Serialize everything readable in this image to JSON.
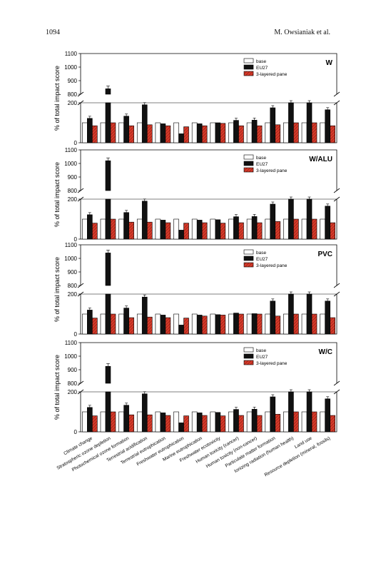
{
  "page": {
    "page_number": "1094",
    "authors": "M. Owsianiak et al."
  },
  "colors": {
    "base": "#ffffff",
    "eu27": "#111111",
    "pane": "#d63a2a",
    "pane_hatch": "#7a1a10"
  },
  "chart_data": {
    "type": "bar",
    "ylabel": "% of total impact score",
    "legend": [
      "base",
      "EU27",
      "3-layered pane"
    ],
    "legend_position": "top-right",
    "categories": [
      "Climate change",
      "Stratospheric ozone depletion",
      "Photochemical ozone formation",
      "Terrestrial acidification",
      "Terrestrial eutrophication",
      "Freshwater eutrophication",
      "Marine eutrophication",
      "Freshwater ecotoxicity",
      "Human toxicity (cancer)",
      "Human toxicity (non-cancer)",
      "Particulate matter formation",
      "Ionizing radiation (human health)",
      "Land use",
      "Resource depletion (mineral, fossils)"
    ],
    "upper_ticks": [
      "800",
      "900",
      "1000",
      "1100"
    ],
    "lower_ticks": [
      "0",
      "200"
    ],
    "lower_ylim": [
      0,
      200
    ],
    "upper_ylim": [
      800,
      1100
    ],
    "panels": [
      {
        "label": "W",
        "series": [
          {
            "name": "base",
            "values": [
              100,
              100,
              100,
              100,
              100,
              100,
              100,
              100,
              100,
              100,
              100,
              100,
              100,
              100
            ]
          },
          {
            "name": "EU27",
            "values": [
              122,
              840,
              133,
              190,
              95,
              45,
              95,
              100,
              112,
              113,
              175,
              205,
              205,
              165
            ]
          },
          {
            "name": "3-layered pane",
            "values": [
              85,
              100,
              85,
              90,
              85,
              80,
              85,
              97,
              85,
              85,
              90,
              100,
              100,
              85
            ]
          }
        ]
      },
      {
        "label": "W/ALU",
        "series": [
          {
            "name": "base",
            "values": [
              100,
              100,
              100,
              100,
              100,
              100,
              100,
              100,
              100,
              100,
              100,
              100,
              100,
              100
            ]
          },
          {
            "name": "EU27",
            "values": [
              122,
              1020,
              133,
              190,
              95,
              45,
              95,
              97,
              112,
              113,
              175,
              205,
              205,
              165
            ]
          },
          {
            "name": "3-layered pane",
            "values": [
              80,
              100,
              85,
              85,
              82,
              80,
              82,
              80,
              82,
              82,
              88,
              100,
              100,
              82
            ]
          }
        ]
      },
      {
        "label": "PVC",
        "series": [
          {
            "name": "base",
            "values": [
              100,
              100,
              100,
              100,
              100,
              100,
              100,
              100,
              100,
              100,
              100,
              100,
              100,
              100
            ]
          },
          {
            "name": "EU27",
            "values": [
              120,
              1040,
              130,
              185,
              95,
              45,
              95,
              97,
              105,
              102,
              165,
              205,
              205,
              165
            ]
          },
          {
            "name": "3-layered pane",
            "values": [
              80,
              100,
              82,
              85,
              82,
              80,
              90,
              95,
              100,
              100,
              90,
              100,
              100,
              82
            ]
          }
        ]
      },
      {
        "label": "W/C",
        "series": [
          {
            "name": "base",
            "values": [
              100,
              100,
              100,
              100,
              100,
              100,
              100,
              100,
              100,
              100,
              100,
              100,
              100,
              100
            ]
          },
          {
            "name": "EU27",
            "values": [
              122,
              925,
              133,
              190,
              95,
              45,
              95,
              97,
              112,
              113,
              175,
              205,
              205,
              165
            ]
          },
          {
            "name": "3-layered pane",
            "values": [
              80,
              100,
              85,
              85,
              82,
              80,
              82,
              80,
              82,
              82,
              88,
              100,
              100,
              82
            ]
          }
        ]
      }
    ]
  }
}
